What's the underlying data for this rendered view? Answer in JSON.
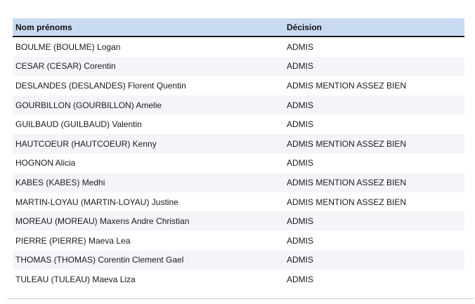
{
  "table": {
    "headers": {
      "name": "Nom prénoms",
      "decision": "Décision"
    },
    "rows": [
      {
        "name": "BOULME (BOULME) Logan",
        "decision": "ADMIS"
      },
      {
        "name": "CESAR (CESAR) Corentin",
        "decision": "ADMIS"
      },
      {
        "name": "DESLANDES (DESLANDES) Florent Quentin",
        "decision": "ADMIS MENTION ASSEZ BIEN"
      },
      {
        "name": "GOURBILLON (GOURBILLON) Amelie",
        "decision": "ADMIS"
      },
      {
        "name": "GUILBAUD (GUILBAUD) Valentin",
        "decision": "ADMIS"
      },
      {
        "name": "HAUTCOEUR (HAUTCOEUR) Kenny",
        "decision": "ADMIS MENTION ASSEZ BIEN"
      },
      {
        "name": "HOGNON Alicia",
        "decision": "ADMIS"
      },
      {
        "name": "KABES (KABES) Medhi",
        "decision": "ADMIS MENTION ASSEZ BIEN"
      },
      {
        "name": "MARTIN-LOYAU (MARTIN-LOYAU) Justine",
        "decision": "ADMIS MENTION ASSEZ BIEN"
      },
      {
        "name": "MOREAU (MOREAU) Maxens Andre Christian",
        "decision": "ADMIS"
      },
      {
        "name": "PIERRE (PIERRE) Maeva Lea",
        "decision": "ADMIS"
      },
      {
        "name": "THOMAS (THOMAS) Corentin Clement Gael",
        "decision": "ADMIS"
      },
      {
        "name": "TULEAU (TULEAU) Maeva Liza",
        "decision": "ADMIS"
      }
    ]
  },
  "colors": {
    "header_background": "#c8daf2",
    "header_rule": "#1a1a1a",
    "row_alt_background": "#f4f5f9"
  }
}
